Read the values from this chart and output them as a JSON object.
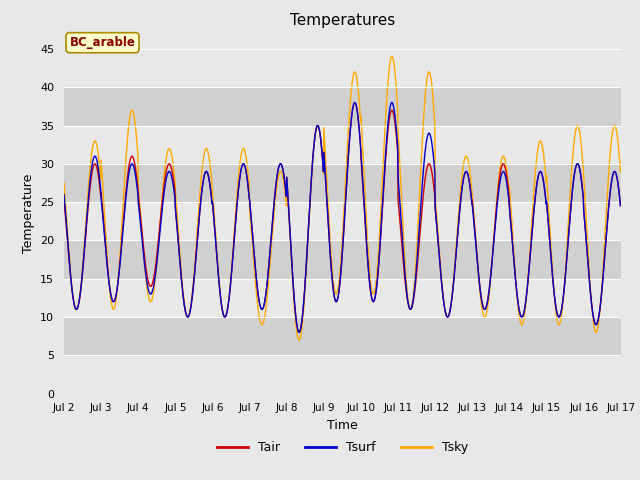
{
  "title": "Temperatures",
  "xlabel": "Time",
  "ylabel": "Temperature",
  "ylim": [
    0,
    47
  ],
  "yticks": [
    0,
    5,
    10,
    15,
    20,
    25,
    30,
    35,
    40,
    45
  ],
  "annotation_text": "BC_arable",
  "annotation_bg": "#ffffcc",
  "annotation_border": "#aa8800",
  "annotation_text_color": "#880000",
  "fig_bg_color": "#e8e8e8",
  "plot_bg_color": "#d8d8d8",
  "band_colors": [
    "#e8e8e8",
    "#d0d0d0"
  ],
  "line_colors": {
    "Tair": "#cc0000",
    "Tsurf": "#0000cc",
    "Tsky": "#ffaa00"
  },
  "ticks_days": [
    2,
    3,
    4,
    5,
    6,
    7,
    8,
    9,
    10,
    11,
    12,
    13,
    14,
    15,
    16,
    17
  ],
  "day_mins_air": [
    11,
    12,
    14,
    10,
    10,
    11,
    8,
    12,
    12,
    11,
    10,
    11,
    10,
    10,
    9
  ],
  "day_maxs_air": [
    30,
    31,
    30,
    29,
    30,
    30,
    35,
    38,
    37,
    30,
    29,
    30,
    29,
    30,
    29
  ],
  "day_mins_surf": [
    11,
    12,
    13,
    10,
    10,
    11,
    8,
    12,
    12,
    11,
    10,
    11,
    10,
    10,
    9
  ],
  "day_maxs_surf": [
    31,
    30,
    29,
    29,
    30,
    30,
    35,
    38,
    38,
    34,
    29,
    29,
    29,
    30,
    29
  ],
  "day_mins_sky": [
    11,
    11,
    12,
    10,
    10,
    9,
    7,
    13,
    13,
    11,
    10,
    10,
    9,
    9,
    8
  ],
  "day_maxs_sky": [
    33,
    37,
    32,
    32,
    32,
    29,
    35,
    42,
    44,
    42,
    31,
    31,
    33,
    35,
    35
  ]
}
